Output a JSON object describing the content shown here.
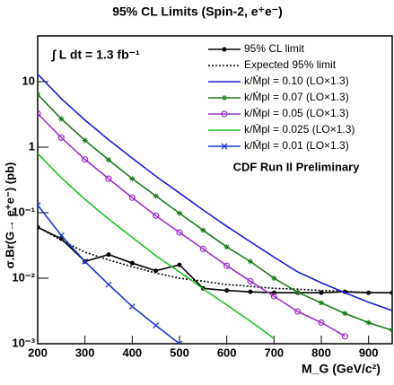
{
  "chart_data": {
    "type": "line",
    "title": "95% CL Limits (Spin-2, e⁺e⁻)",
    "x_label": "M_G (GeV/c²)",
    "y_label": "σ.Br(G→ e⁺e⁻) (pb)",
    "annotations": [
      "∫ L dt =  1.3 fb⁻¹",
      "CDF Run II Preliminary"
    ],
    "log_y": true,
    "legend": "upper right",
    "xlim": [
      200,
      950
    ],
    "xticks": [
      200,
      300,
      400,
      500,
      600,
      700,
      800,
      900
    ],
    "ylim": [
      0.001,
      50
    ],
    "yticks": [
      {
        "value": 0.001,
        "label": "10⁻³"
      },
      {
        "value": 0.01,
        "label": "10⁻²"
      },
      {
        "value": 0.1,
        "label": "10⁻¹"
      },
      {
        "value": 1,
        "label": "1"
      },
      {
        "value": 10,
        "label": "10"
      }
    ],
    "x": [
      200,
      250,
      300,
      350,
      400,
      450,
      500,
      550,
      600,
      650,
      700,
      750,
      800,
      850,
      900,
      950
    ],
    "series": [
      {
        "name": "95% CL limit",
        "color": "#000000",
        "marker": "dot",
        "dash": "solid",
        "values": [
          0.06,
          0.04,
          0.018,
          0.023,
          0.017,
          0.013,
          0.016,
          0.007,
          0.0065,
          0.0062,
          0.006,
          0.006,
          0.006,
          0.0062,
          0.006,
          0.006
        ]
      },
      {
        "name": "Expected 95% limit",
        "color": "#000000",
        "marker": "none",
        "dash": "dotted",
        "values": [
          0.06,
          0.038,
          0.025,
          0.019,
          0.015,
          0.012,
          0.01,
          0.009,
          0.008,
          0.0075,
          0.007,
          0.0068,
          0.0065,
          0.0063,
          0.006,
          0.006
        ]
      },
      {
        "name": "k/M̄pl = 0.10 (LO×1.3)",
        "color": "#1a1adb",
        "marker": "none",
        "dash": "solid",
        "values": [
          13,
          5.5,
          2.6,
          1.3,
          0.68,
          0.36,
          0.2,
          0.11,
          0.062,
          0.036,
          0.021,
          0.0125,
          0.0085,
          0.006,
          0.0043,
          0.0032
        ]
      },
      {
        "name": "k/M̄pl = 0.07 (LO×1.3)",
        "color": "#1b7a1b",
        "marker": "star",
        "dash": "solid",
        "values": [
          6.4,
          2.7,
          1.27,
          0.64,
          0.33,
          0.18,
          0.098,
          0.054,
          0.03,
          0.018,
          0.01,
          0.0061,
          0.0042,
          0.0029,
          0.0021,
          0.0016
        ]
      },
      {
        "name": "k/M̄pl = 0.05 (LO×1.3)",
        "color": "#9b30c8",
        "marker": "circle",
        "dash": "solid",
        "values": [
          3.25,
          1.4,
          0.65,
          0.33,
          0.17,
          0.09,
          0.05,
          0.028,
          0.0155,
          0.009,
          0.0053,
          0.0031,
          0.0021,
          0.0013,
          null,
          null
        ]
      },
      {
        "name": "k/M̄pl = 0.025 (LO×1.3)",
        "color": "#22c022",
        "marker": "none",
        "dash": "solid",
        "values": [
          0.8,
          0.34,
          0.16,
          0.08,
          0.042,
          0.022,
          0.0125,
          0.0069,
          0.0039,
          0.0022,
          0.0012,
          null,
          null,
          null,
          null,
          null
        ]
      },
      {
        "name": "k/M̄pl = 0.01 (LO×1.3)",
        "color": "#1a3ad0",
        "marker": "x",
        "dash": "solid",
        "values": [
          0.13,
          0.045,
          0.018,
          0.008,
          0.0037,
          0.0019,
          0.001,
          null,
          null,
          null,
          null,
          null,
          null,
          null,
          null,
          null
        ]
      }
    ]
  }
}
